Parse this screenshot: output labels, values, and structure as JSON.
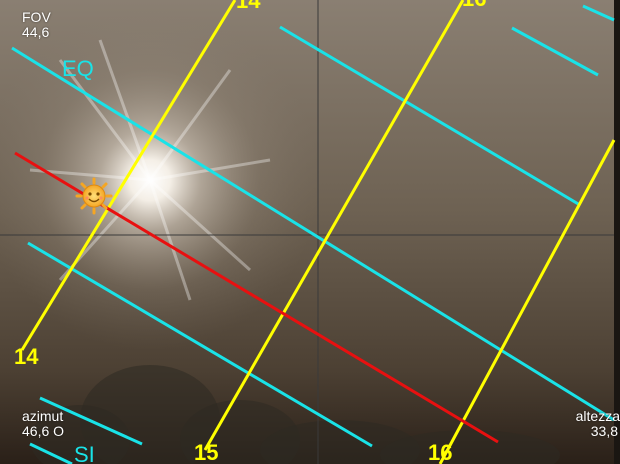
{
  "hud": {
    "fov_label": "FOV",
    "fov_value": "44,6",
    "azimuth_label": "azimut",
    "azimuth_value": "46,6 O",
    "altitude_label": "altezza",
    "altitude_value": "33,8"
  },
  "overlay": {
    "hour_lines": {
      "color": "#ffff00",
      "labels": [
        "14",
        "14",
        "15",
        "16",
        "16"
      ]
    },
    "equator_label": "EQ",
    "solstice_label": "SI",
    "sun_path_color": "#e81010",
    "declination_line_color": "#19e3e8",
    "crosshair_color": "#3a3a3a",
    "sun_icon": "sun-face-icon"
  }
}
